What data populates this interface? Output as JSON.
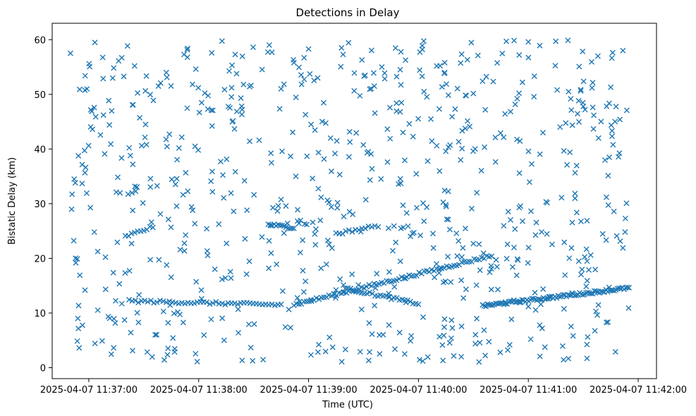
{
  "chart_data": {
    "type": "scatter",
    "title": "Detections in Delay",
    "xlabel": "Time (UTC)",
    "ylabel": "Bistatic Delay (km)",
    "xlim": [
      "2025-04-07 11:36:40",
      "2025-04-07 11:42:10"
    ],
    "ylim": [
      -2,
      63
    ],
    "xticks": [
      "2025-04-07 11:37:00",
      "2025-04-07 11:38:00",
      "2025-04-07 11:39:00",
      "2025-04-07 11:40:00",
      "2025-04-07 11:41:00",
      "2025-04-07 11:42:00"
    ],
    "yticks": [
      0,
      10,
      20,
      30,
      40,
      50,
      60
    ],
    "marker": "x",
    "color": "#1f77b4",
    "series_tracks": [
      {
        "t0": "2025-04-07 11:37:20",
        "t1": "2025-04-07 11:37:35",
        "y0": 24.0,
        "y1": 25.8,
        "n": 10
      },
      {
        "t0": "2025-04-07 11:37:22",
        "t1": "2025-04-07 11:38:45",
        "y0": 12.2,
        "y1": 11.5,
        "n": 50
      },
      {
        "t0": "2025-04-07 11:38:38",
        "t1": "2025-04-07 11:38:52",
        "y0": 26.2,
        "y1": 25.6,
        "n": 14
      },
      {
        "t0": "2025-04-07 11:38:52",
        "t1": "2025-04-07 11:40:40",
        "y0": 11.5,
        "y1": 20.5,
        "n": 80
      },
      {
        "t0": "2025-04-07 11:39:15",
        "t1": "2025-04-07 11:39:38",
        "y0": 24.5,
        "y1": 26.0,
        "n": 14
      },
      {
        "t0": "2025-04-07 11:39:20",
        "t1": "2025-04-07 11:40:00",
        "y0": 14.5,
        "y1": 11.7,
        "n": 28
      },
      {
        "t0": "2025-04-07 11:40:35",
        "t1": "2025-04-07 11:41:55",
        "y0": 11.3,
        "y1": 14.6,
        "n": 90
      }
    ],
    "points": [
      [
        "2025-04-07 11:36:50",
        57.5
      ],
      [
        "2025-04-07 11:36:52",
        34.5
      ],
      [
        "2025-04-07 11:36:55",
        50.9
      ],
      [
        "2025-04-07 11:36:58",
        53.4
      ],
      [
        "2025-04-07 11:37:02",
        43.6
      ],
      [
        "2025-04-07 11:37:08",
        46.2
      ],
      [
        "2025-04-07 11:37:12",
        40.9
      ],
      [
        "2025-04-07 11:37:18",
        56.7
      ],
      [
        "2025-04-07 11:37:25",
        55.2
      ],
      [
        "2025-04-07 11:37:31",
        44.5
      ],
      [
        "2025-04-07 11:37:38",
        51.5
      ],
      [
        "2025-04-07 11:37:44",
        42.7
      ],
      [
        "2025-04-07 11:37:52",
        57.3
      ],
      [
        "2025-04-07 11:37:58",
        40.5
      ],
      [
        "2025-04-07 11:38:05",
        47.3
      ],
      [
        "2025-04-07 11:38:12",
        37.7
      ],
      [
        "2025-04-07 11:38:18",
        51.2
      ],
      [
        "2025-04-07 11:38:25",
        34.2
      ],
      [
        "2025-04-07 11:38:33",
        41.6
      ],
      [
        "2025-04-07 11:38:40",
        57.7
      ],
      [
        "2025-04-07 11:38:45",
        51.0
      ],
      [
        "2025-04-07 11:38:52",
        55.8
      ],
      [
        "2025-04-07 11:39:00",
        58.3
      ],
      [
        "2025-04-07 11:39:05",
        53.0
      ],
      [
        "2025-04-07 11:39:12",
        42.0
      ],
      [
        "2025-04-07 11:39:18",
        58.5
      ],
      [
        "2025-04-07 11:39:25",
        53.9
      ],
      [
        "2025-04-07 11:39:32",
        39.3
      ],
      [
        "2025-04-07 11:39:40",
        55.0
      ],
      [
        "2025-04-07 11:39:48",
        48.4
      ],
      [
        "2025-04-07 11:39:55",
        44.6
      ],
      [
        "2025-04-07 11:40:02",
        53.3
      ],
      [
        "2025-04-07 11:40:10",
        40.6
      ],
      [
        "2025-04-07 11:40:20",
        47.3
      ],
      [
        "2025-04-07 11:40:28",
        44.1
      ],
      [
        "2025-04-07 11:40:35",
        52.4
      ],
      [
        "2025-04-07 11:40:42",
        42.1
      ],
      [
        "2025-04-07 11:40:48",
        59.7
      ],
      [
        "2025-04-07 11:40:55",
        57.2
      ],
      [
        "2025-04-07 11:41:00",
        59.6
      ],
      [
        "2025-04-07 11:41:08",
        43.0
      ],
      [
        "2025-04-07 11:41:15",
        59.7
      ],
      [
        "2025-04-07 11:41:22",
        50.5
      ],
      [
        "2025-04-07 11:41:30",
        47.8
      ],
      [
        "2025-04-07 11:41:38",
        57.0
      ],
      [
        "2025-04-07 11:41:45",
        51.3
      ],
      [
        "2025-04-07 11:41:50",
        45.4
      ],
      [
        "2025-04-07 11:41:53",
        27.3
      ]
    ],
    "background_noise": {
      "t_range": [
        "2025-04-07 11:36:50",
        "2025-04-07 11:41:55"
      ],
      "y_range": [
        1,
        60
      ],
      "count_approx": 700
    }
  }
}
